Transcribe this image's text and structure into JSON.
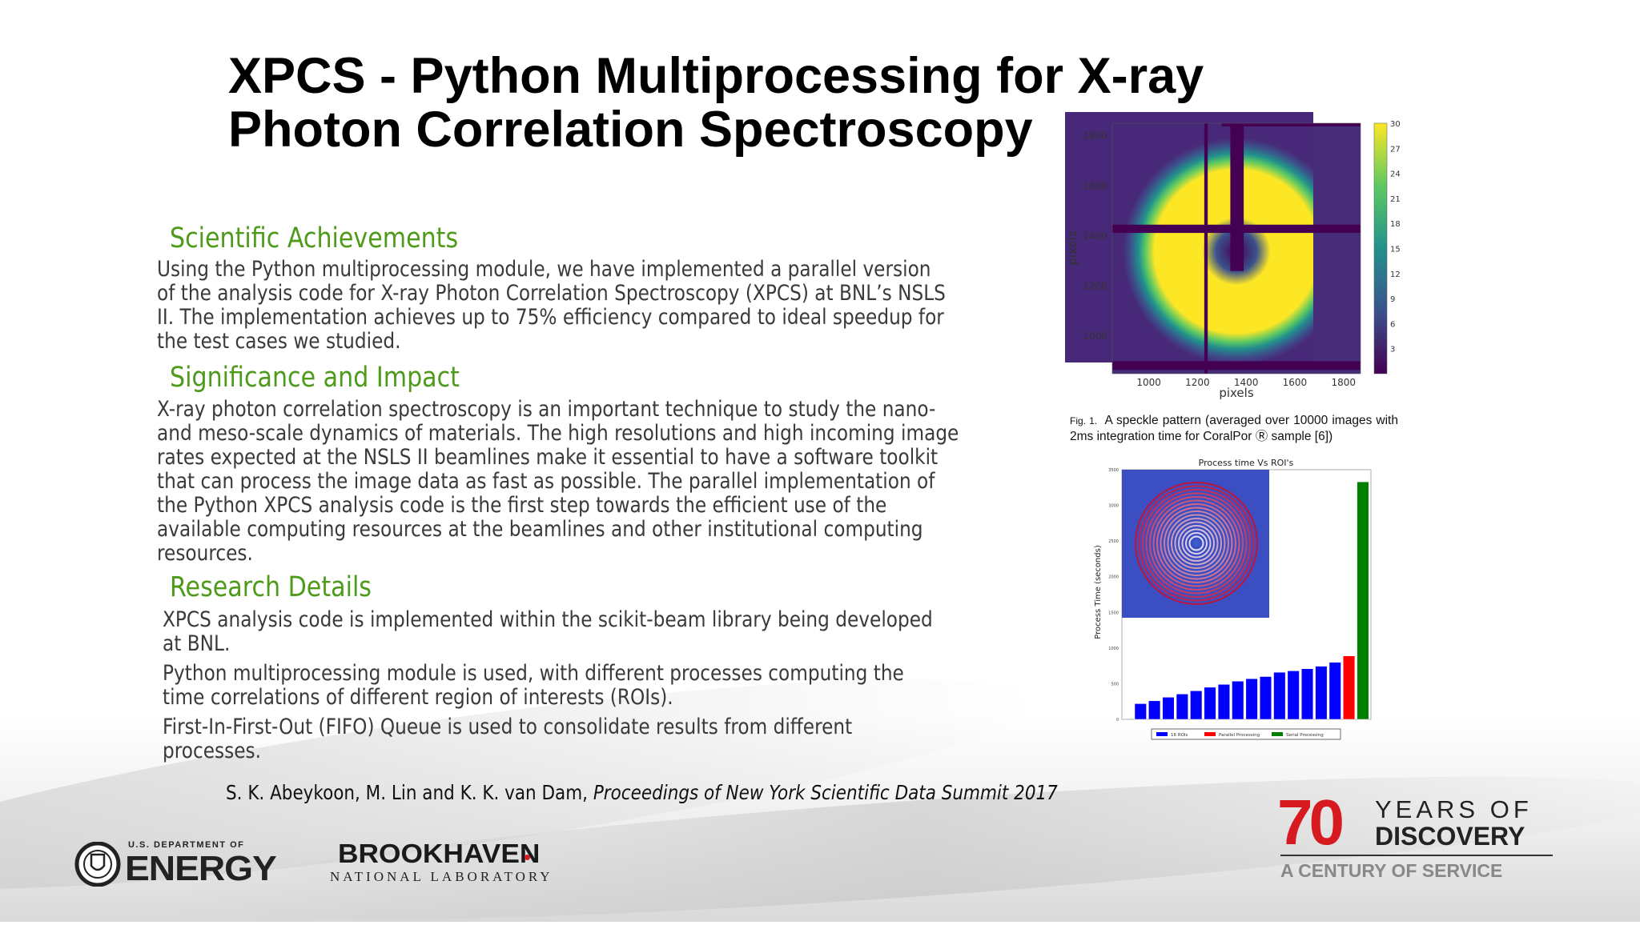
{
  "title": [
    "XPCS - Python Multiprocessing for X-ray",
    "Photon Correlation Spectroscopy"
  ],
  "sections": [
    {
      "heading": "Scientific Achievements",
      "lines": [
        "Using the Python multiprocessing module, we have implemented a parallel version",
        "of the analysis code for X-ray Photon Correlation Spectroscopy  (XPCS) at BNL’s NSLS",
        "II. The implementation achieves up to 75% efficiency compared to ideal speedup for",
        "the test cases we studied."
      ]
    },
    {
      "heading": "Significance and Impact",
      "lines": [
        "X-ray photon correlation spectroscopy is an important technique to study the nano-",
        "and meso-scale dynamics of materials. The high resolutions and high incoming image",
        "rates expected at the NSLS II beamlines make it essential to have a software toolkit",
        "that can process the image data as fast as possible. The parallel implementation of",
        "the Python XPCS analysis code is the first step towards the efficient use of the",
        "available computing resources at the beamlines and other institutional computing",
        "resources."
      ]
    },
    {
      "heading": "Research Details",
      "bullets": [
        [
          "XPCS analysis code is implemented within the scikit-beam library being developed",
          "at BNL."
        ],
        [
          "Python multiprocessing module is used, with different processes computing the",
          "time correlations of different region of interests (ROIs)."
        ],
        [
          "First-In-First-Out (FIFO) Queue is used to consolidate results from different",
          "processes."
        ]
      ]
    }
  ],
  "citation": {
    "authors": "S. K. Abeykoon, M. Lin and K. K. van Dam, ",
    "venue": "Proceedings of New York Scientific Data Summit 2017"
  },
  "caption": {
    "fig_label": "Fig. 1.",
    "text": "A speckle pattern (averaged over 10000 images with 2ms integration time for CoralPor Ⓡ sample [6])"
  },
  "chart_data": [
    {
      "type": "heatmap",
      "xlabel": "pixels",
      "ylabel": "pixels",
      "xticks": [
        1000,
        1200,
        1400,
        1600,
        1800
      ],
      "yticks": [
        1000,
        1200,
        1400,
        1600,
        1800
      ],
      "xlim": [
        850,
        1870
      ],
      "ylim": [
        850,
        1850
      ],
      "colorbar": {
        "ticks": [
          3,
          6,
          9,
          12,
          15,
          18,
          21,
          24,
          27,
          30
        ],
        "range": [
          0,
          30
        ],
        "colormap": "viridis"
      }
    },
    {
      "type": "bar",
      "title": "Process time Vs ROI's",
      "ylabel": "Process Time (seconds)",
      "ylim": [
        0,
        3500
      ],
      "yticks": [
        0,
        500,
        1000,
        1500,
        2000,
        2500,
        3000,
        3500
      ],
      "series": [
        {
          "name": "16 ROIs",
          "color": "#0000ff",
          "values": [
            220,
            260,
            310,
            355,
            400,
            450,
            490,
            535,
            570,
            600,
            660,
            680,
            710,
            745,
            800
          ]
        },
        {
          "name": "Parallel Processing",
          "color": "#ff0000",
          "values": [
            890
          ]
        },
        {
          "name": "Serial Processing",
          "color": "#007f00",
          "values": [
            3330
          ]
        }
      ],
      "legend": "bottom"
    }
  ],
  "logos": {
    "doe": {
      "top": "U.S. DEPARTMENT OF",
      "main": "ENERGY"
    },
    "bnl": {
      "main": "BROOKHAVEN",
      "sub": "NATIONAL LABORATORY"
    },
    "anniv": {
      "num": "70",
      "l1": "YEARS OF",
      "l2": "DISCOVERY",
      "l3": "A CENTURY OF SERVICE",
      "red": "#d71920"
    }
  },
  "colors": {
    "heading": "#4e9a1a",
    "body": "#3a3a3a"
  }
}
